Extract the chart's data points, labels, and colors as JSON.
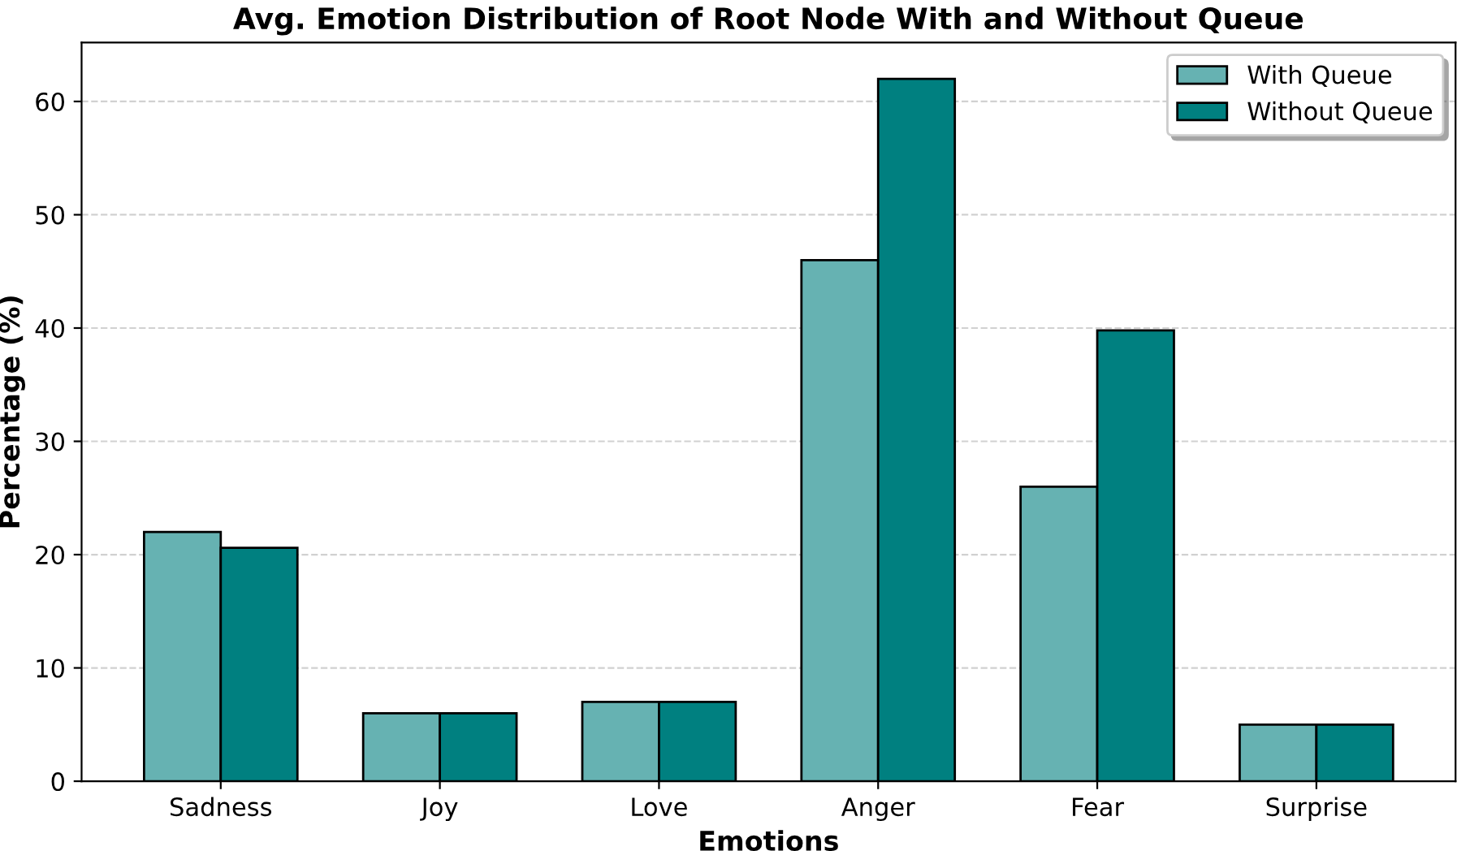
{
  "chart_data": {
    "type": "bar",
    "title": "Avg. Emotion Distribution of Root Node With and Without Queue",
    "xlabel": "Emotions",
    "ylabel": "Percentage (%)",
    "categories": [
      "Sadness",
      "Joy",
      "Love",
      "Anger",
      "Fear",
      "Surprise"
    ],
    "series": [
      {
        "name": "With Queue",
        "color": "#66b2b2",
        "values": [
          22,
          6,
          7,
          46,
          26,
          5
        ]
      },
      {
        "name": "Without Queue",
        "color": "#008080",
        "values": [
          20.6,
          6,
          7,
          62,
          39.8,
          5
        ]
      }
    ],
    "ylim": [
      0,
      65.2
    ],
    "yticks": [
      0,
      10,
      20,
      30,
      40,
      50,
      60
    ],
    "grid": "y",
    "legend": "top right"
  }
}
